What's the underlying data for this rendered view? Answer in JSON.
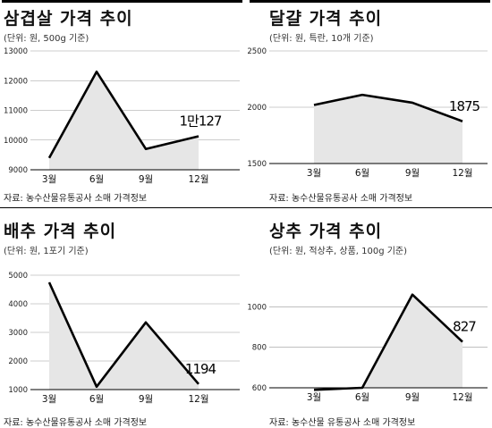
{
  "panels": [
    {
      "title": "삼겹살 가격 추이",
      "subtitle": "(단위: 원, 500g 기준)",
      "source": "자료: 농수산물유통공사 소매 가격정보",
      "chart_data": {
        "type": "area",
        "categories": [
          "3월",
          "6월",
          "9월",
          "12월"
        ],
        "values": [
          9400,
          12300,
          9700,
          10127
        ],
        "ylim": [
          9000,
          13000
        ],
        "yticks": [
          9000,
          10000,
          11000,
          12000,
          13000
        ],
        "annotation": {
          "index": 3,
          "text": "1만127"
        }
      }
    },
    {
      "title": "달걀 가격 추이",
      "subtitle": "(단위: 원, 특란, 10개 기준)",
      "source": "자료: 농수산물유통공사 소매 가격정보",
      "chart_data": {
        "type": "area",
        "categories": [
          "3월",
          "6월",
          "9월",
          "12월"
        ],
        "values": [
          2020,
          2110,
          2040,
          1875
        ],
        "ylim": [
          1500,
          2500
        ],
        "yticks": [
          1500,
          2000,
          2500
        ],
        "annotation": {
          "index": 3,
          "text": "1875"
        }
      }
    },
    {
      "title": "배추 가격 추이",
      "subtitle": "(단위: 원, 1포기 기준)",
      "source": "자료: 농수산물유통공사 소매 가격정보",
      "chart_data": {
        "type": "area",
        "categories": [
          "3월",
          "6월",
          "9월",
          "12월"
        ],
        "values": [
          4750,
          1100,
          3350,
          1194
        ],
        "ylim": [
          1000,
          5000
        ],
        "yticks": [
          1000,
          2000,
          3000,
          4000,
          5000
        ],
        "annotation": {
          "index": 3,
          "text": "1194"
        }
      }
    },
    {
      "title": "상추 가격 추이",
      "subtitle": "(단위: 원, 적상추, 상품, 100g 기준)",
      "source": "자료: 농수산물 유통공사 소매 가격정보",
      "chart_data": {
        "type": "area",
        "categories": [
          "3월",
          "6월",
          "9월",
          "12월"
        ],
        "values": [
          590,
          600,
          1060,
          827
        ],
        "ylim": [
          600,
          1200
        ],
        "yticks": [
          600,
          800,
          1000
        ],
        "annotation": {
          "index": 3,
          "text": "827"
        }
      }
    }
  ],
  "colors": {
    "fill": "#e6e6e6",
    "line": "#000000",
    "grid": "#999999"
  }
}
